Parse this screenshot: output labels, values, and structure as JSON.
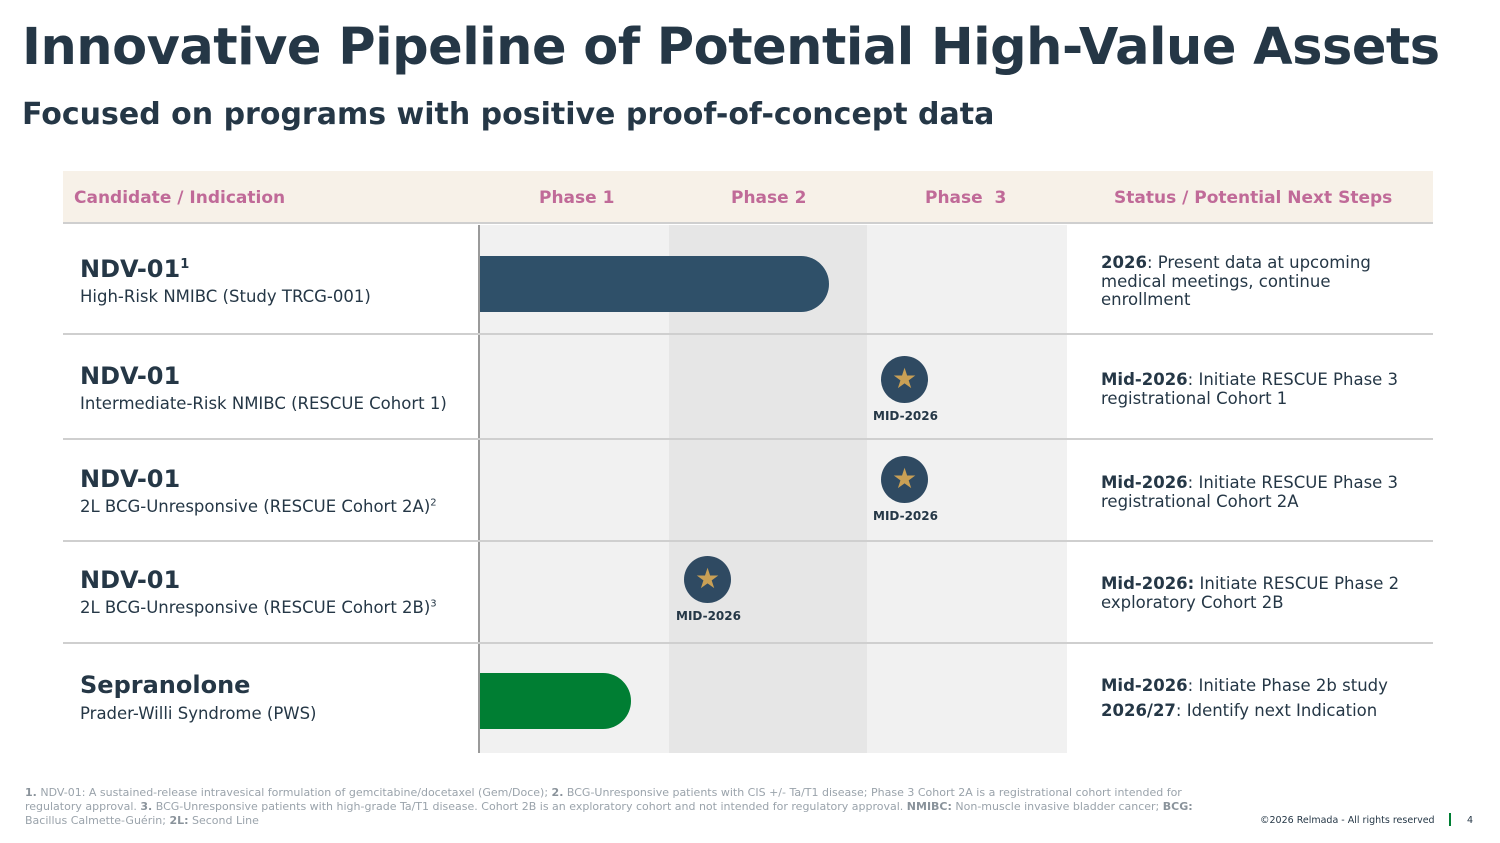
{
  "title": "Innovative Pipeline of Potential High-Value Assets",
  "subtitle": "Focused on programs with positive proof-of-concept data",
  "table": {
    "headers": {
      "candidate": "Candidate / Indication",
      "phase1": "Phase 1",
      "phase2": "Phase 2",
      "phase3": "Phase  3",
      "status": "Status / Potential Next Steps"
    },
    "rows": [
      {
        "candidate": "NDV-01",
        "candidate_sup": "1",
        "indication": "High-Risk NMIBC (Study TRCG-001)",
        "indication_sup": "",
        "status_lines": [
          {
            "bold": "2026",
            "text": ": Present data at upcoming medical meetings, continue enrollment"
          }
        ]
      },
      {
        "candidate": "NDV-01",
        "candidate_sup": "",
        "indication": "Intermediate-Risk NMIBC (RESCUE Cohort 1)",
        "indication_sup": "",
        "milestone": "MID-2026",
        "status_lines": [
          {
            "bold": "Mid-2026",
            "text": ": Initiate RESCUE Phase 3 registrational Cohort 1"
          }
        ]
      },
      {
        "candidate": "NDV-01",
        "candidate_sup": "",
        "indication": "2L BCG-Unresponsive (RESCUE Cohort 2A)",
        "indication_sup": "2",
        "milestone": "MID-2026",
        "status_lines": [
          {
            "bold": "Mid-2026",
            "text": ": Initiate RESCUE Phase 3 registrational Cohort 2A"
          }
        ]
      },
      {
        "candidate": "NDV-01",
        "candidate_sup": "",
        "indication": "2L BCG-Unresponsive (RESCUE Cohort 2B)",
        "indication_sup": "3",
        "milestone": "MID-2026",
        "status_lines": [
          {
            "bold": "Mid-2026:",
            "text": " Initiate RESCUE Phase 2 exploratory Cohort 2B"
          }
        ]
      },
      {
        "candidate": "Sepranolone",
        "candidate_sup": "",
        "indication": "Prader-Willi Syndrome (PWS)",
        "indication_sup": "",
        "status_lines": [
          {
            "bold": "Mid-2026",
            "text": ": Initiate Phase 2b study"
          },
          {
            "bold": "2026/27",
            "text": ": Identify next Indication"
          }
        ]
      }
    ]
  },
  "footnotes": {
    "n1_label": "1.",
    "n1_text": " NDV-01: A sustained-release intravesical formulation of gemcitabine/docetaxel (Gem/Doce); ",
    "n2_label": "2.",
    "n2_text": " BCG-Unresponsive patients with CIS +/- Ta/T1 disease; Phase 3 Cohort 2A is a registrational cohort intended for regulatory approval. ",
    "n3_label": "3.",
    "n3_text": " BCG-Unresponsive patients with high-grade Ta/T1 disease. Cohort 2B is an exploratory cohort and not intended for regulatory approval. ",
    "nmibc_label": "NMIBC:",
    "nmibc_text": " Non-muscle invasive bladder cancer; ",
    "bcg_label": "BCG:",
    "bcg_text": " Bacillus Calmette-Guérin; ",
    "l2_label": "2L:",
    "l2_text": " Second Line"
  },
  "copyright": "©2026 Relmada - All rights reserved",
  "page_number": "4",
  "colors": {
    "navy": "#253746",
    "header_pink": "#c06a98",
    "bar_navy": "#2f5069",
    "bar_green": "#007e33",
    "star_gold": "#c9a055"
  },
  "icons": {
    "milestone": "star-icon"
  }
}
